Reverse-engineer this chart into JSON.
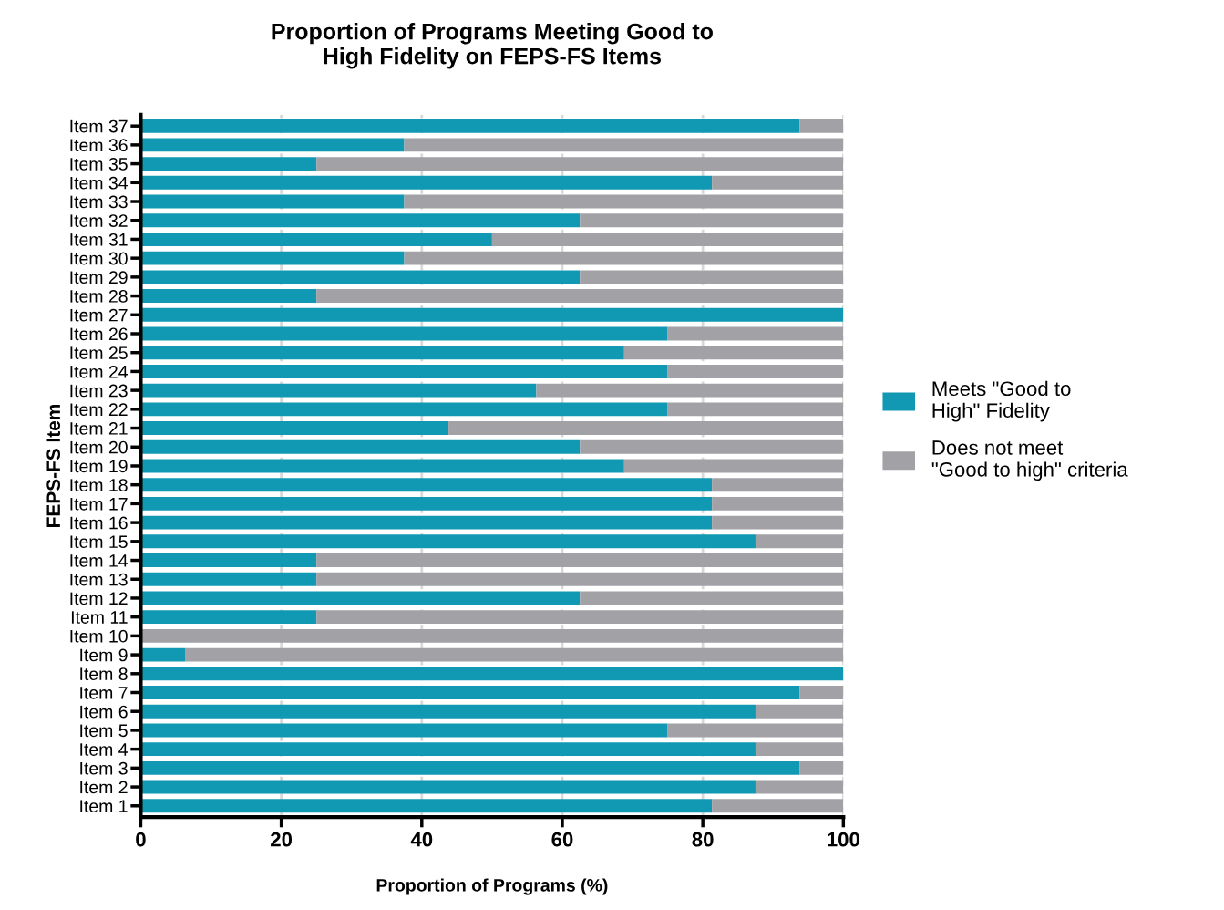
{
  "chart_data": {
    "type": "bar",
    "orientation": "horizontal",
    "stacked": true,
    "title": "Proportion of Programs Meeting Good to\nHigh Fidelity on FEPS-FS Items",
    "xlabel": "Proportion of Programs (%)",
    "ylabel": "FEPS-FS Item",
    "categories": [
      "Item 37",
      "Item 36",
      "Item 35",
      "Item 34",
      "Item 33",
      "Item 32",
      "Item 31",
      "Item 30",
      "Item 29",
      "Item 28",
      "Item 27",
      "Item 26",
      "Item 25",
      "Item 24",
      "Item 23",
      "Item 22",
      "Item 21",
      "Item 20",
      "Item 19",
      "Item 18",
      "Item 17",
      "Item 16",
      "Item 15",
      "Item 14",
      "Item 13",
      "Item 12",
      "Item 11",
      "Item 10",
      "Item 9",
      "Item 8",
      "Item 7",
      "Item 6",
      "Item 5",
      "Item 4",
      "Item 3",
      "Item 2",
      "Item 1"
    ],
    "series": [
      {
        "name": "Meets \"Good to\nHigh\" Fidelity",
        "color": "#1199b4",
        "values": [
          93.8,
          37.5,
          25,
          81.3,
          37.5,
          62.5,
          50,
          37.5,
          62.5,
          25,
          100,
          75,
          68.8,
          75,
          56.3,
          75,
          43.8,
          62.5,
          68.8,
          81.3,
          81.3,
          81.3,
          87.5,
          25,
          25,
          62.5,
          25,
          0,
          6.3,
          100,
          93.8,
          87.5,
          75,
          87.5,
          93.8,
          87.5,
          81.3
        ]
      },
      {
        "name": "Does not meet\n\"Good to high\" criteria",
        "color": "#a2a1a6",
        "values": [
          6.2,
          62.5,
          75,
          18.7,
          62.5,
          37.5,
          50,
          62.5,
          37.5,
          75,
          0,
          25,
          31.2,
          25,
          43.7,
          25,
          56.2,
          37.5,
          31.2,
          18.7,
          18.7,
          18.7,
          12.5,
          75,
          75,
          37.5,
          75,
          100,
          93.7,
          0,
          6.2,
          12.5,
          25,
          12.5,
          6.2,
          12.5,
          18.7
        ]
      }
    ],
    "xlim": [
      0,
      100
    ],
    "xticks": [
      0,
      20,
      40,
      60,
      80,
      100
    ],
    "grid": "x",
    "legend": "right"
  }
}
